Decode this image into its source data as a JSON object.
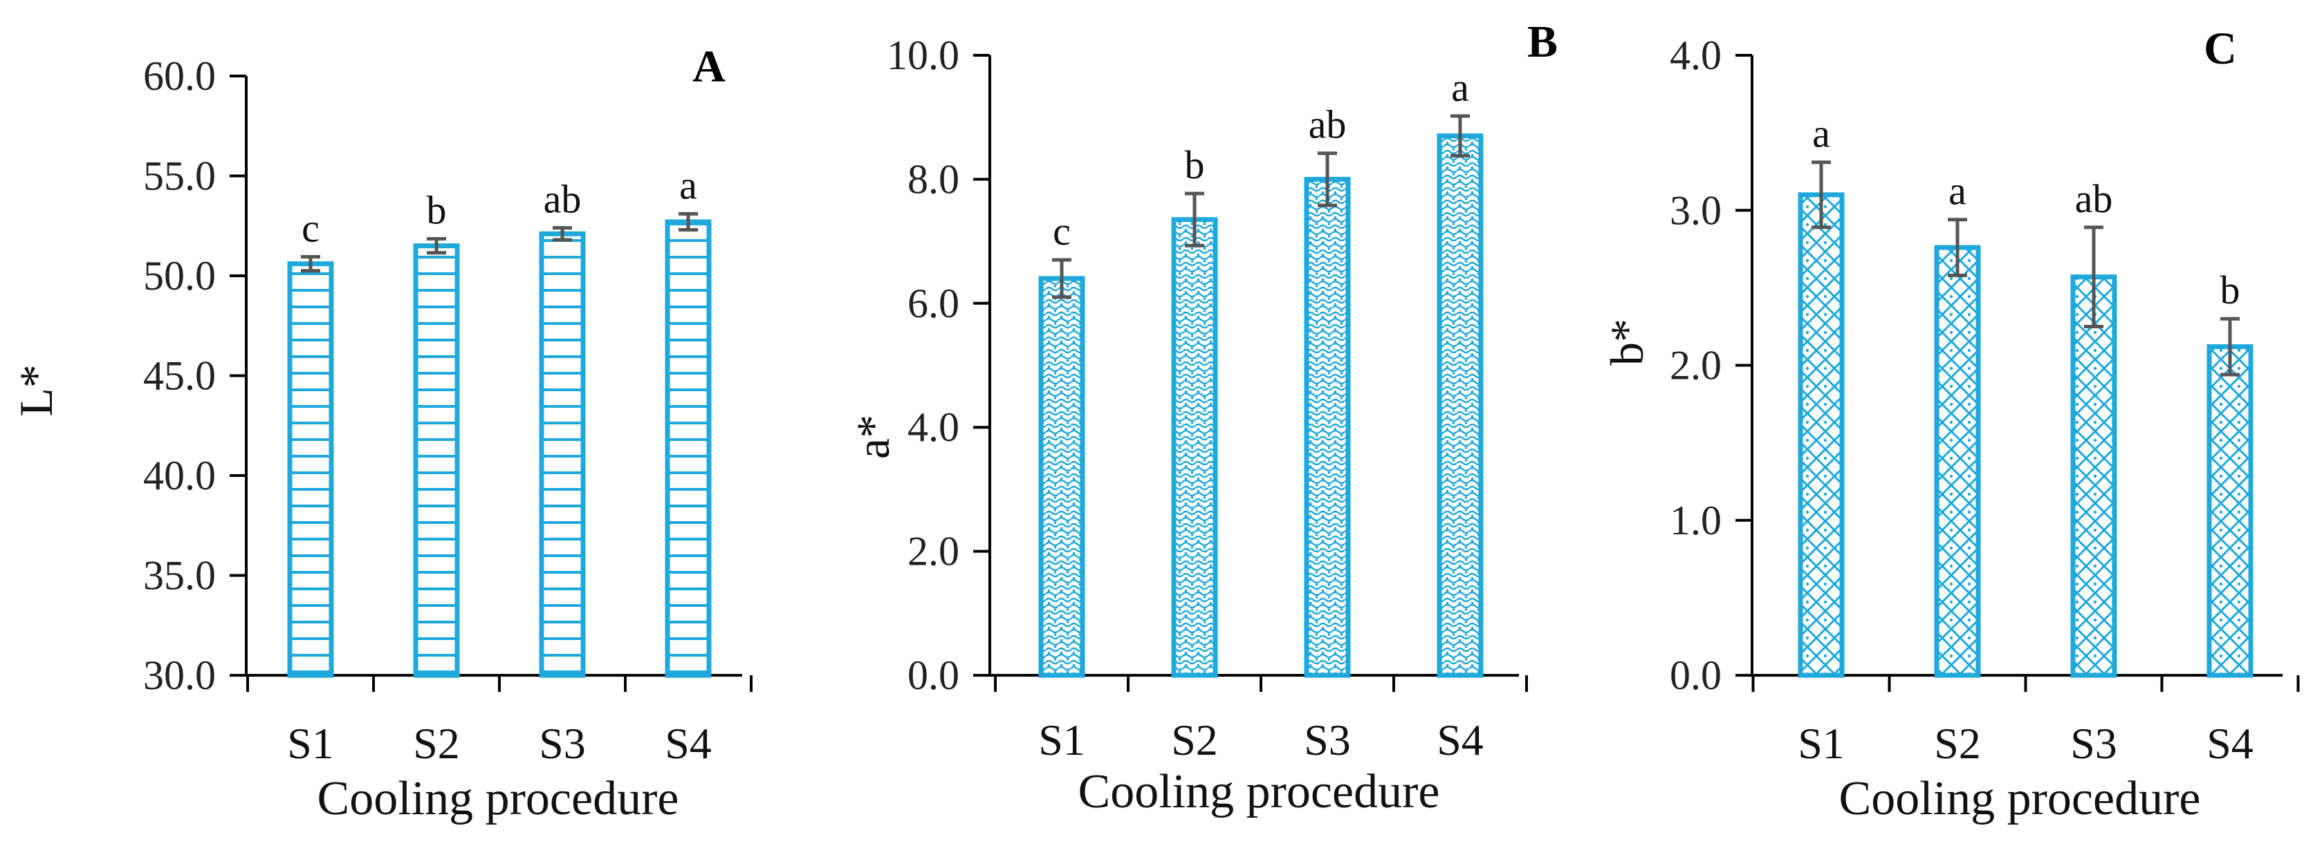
{
  "chart_data": [
    {
      "type": "bar",
      "panel_label": "A",
      "categories": [
        "S1",
        "S2",
        "S3",
        "S4"
      ],
      "values": [
        50.6,
        51.5,
        52.1,
        52.7
      ],
      "errors": [
        0.35,
        0.35,
        0.3,
        0.4
      ],
      "significance": [
        "c",
        "b",
        "ab",
        "a"
      ],
      "ylabel": "L*",
      "xlabel": "Cooling procedure",
      "ylim": [
        30.0,
        60.0
      ],
      "yticks": [
        30.0,
        35.0,
        40.0,
        45.0,
        50.0,
        55.0,
        60.0
      ],
      "ytick_labels": [
        "30.0",
        "35.0",
        "40.0",
        "45.0",
        "50.0",
        "55.0",
        "60.0"
      ],
      "fill_pattern": "horizontal-lines",
      "bar_color": "#1ea8dc"
    },
    {
      "type": "bar",
      "panel_label": "B",
      "categories": [
        "S1",
        "S2",
        "S3",
        "S4"
      ],
      "values": [
        6.4,
        7.35,
        8.0,
        8.7
      ],
      "errors": [
        0.3,
        0.42,
        0.42,
        0.32
      ],
      "significance": [
        "c",
        "b",
        "ab",
        "a"
      ],
      "ylabel": "a*",
      "xlabel": "Cooling procedure",
      "ylim": [
        0.0,
        10.0
      ],
      "yticks": [
        0.0,
        2.0,
        4.0,
        6.0,
        8.0,
        10.0
      ],
      "ytick_labels": [
        "0.0",
        "2.0",
        "4.0",
        "6.0",
        "8.0",
        "10.0"
      ],
      "fill_pattern": "dotted-weave",
      "bar_color": "#1ea8dc"
    },
    {
      "type": "bar",
      "panel_label": "C",
      "categories": [
        "S1",
        "S2",
        "S3",
        "S4"
      ],
      "values": [
        3.1,
        2.76,
        2.57,
        2.12
      ],
      "errors": [
        0.21,
        0.18,
        0.32,
        0.18
      ],
      "significance": [
        "a",
        "a",
        "ab",
        "b"
      ],
      "ylabel": "b*",
      "xlabel": "Cooling procedure",
      "ylim": [
        0.0,
        4.0
      ],
      "yticks": [
        0.0,
        1.0,
        2.0,
        3.0,
        4.0
      ],
      "ytick_labels": [
        "0.0",
        "1.0",
        "2.0",
        "3.0",
        "4.0"
      ],
      "fill_pattern": "lattice",
      "bar_color": "#1ea8dc"
    }
  ]
}
